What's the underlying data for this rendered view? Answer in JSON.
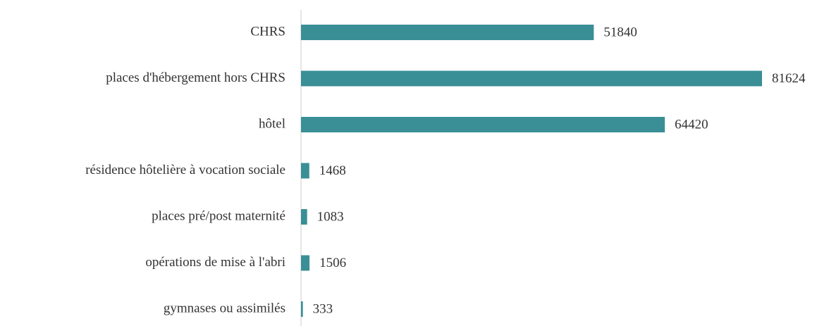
{
  "chart_data": {
    "type": "barh",
    "categories": [
      "CHRS",
      "places d'hébergement hors CHRS",
      "hôtel",
      "résidence hôtelière à vocation sociale",
      "places pré/post maternité",
      "opérations de mise à l'abri",
      "gymnases ou assimilés"
    ],
    "values": [
      51840,
      81624,
      64420,
      1468,
      1083,
      1506,
      333
    ],
    "color": "#3a8f96"
  }
}
